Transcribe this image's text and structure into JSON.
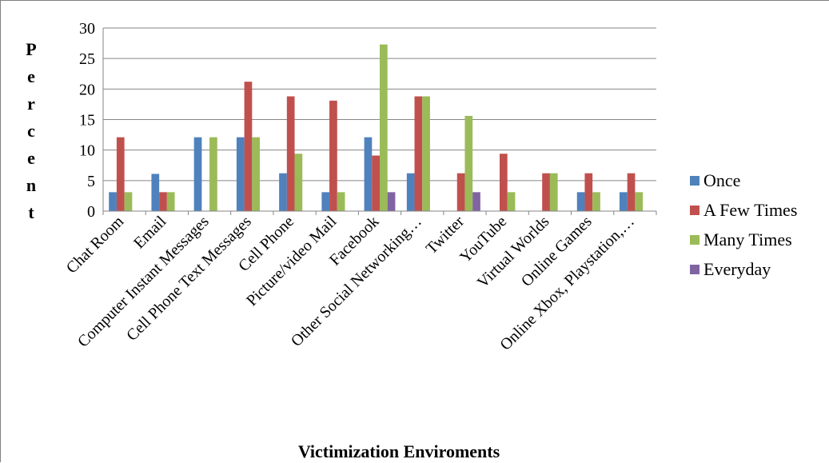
{
  "chart_data": {
    "type": "bar",
    "title": "",
    "xlabel": "Victimization Enviroments",
    "ylabel": "Percent",
    "ylim": [
      0,
      30
    ],
    "yticks": [
      0,
      5,
      10,
      15,
      20,
      25,
      30
    ],
    "grid": true,
    "legend_position": "right",
    "categories": [
      "Chat Room",
      "Email",
      "Computer Instant Messages",
      "Cell Phone Text Messages",
      "Cell Phone",
      "Picture/video Mail",
      "Facebook",
      "Other Social Networking…",
      "Twitter",
      "YouTube",
      "Virtual Worlds",
      "Online Games",
      "Online Xbox, Playstation,…"
    ],
    "series": [
      {
        "name": "Once",
        "color": "#4f81bd",
        "values": [
          3.1,
          6.1,
          12.1,
          12.1,
          6.2,
          3.1,
          12.1,
          6.2,
          0,
          0,
          0,
          3.1,
          3.1
        ]
      },
      {
        "name": "A Few Times",
        "color": "#c0504d",
        "values": [
          12.1,
          3.1,
          0,
          21.2,
          18.8,
          18.1,
          9.1,
          18.8,
          6.2,
          9.4,
          6.2,
          6.2,
          6.2
        ]
      },
      {
        "name": "Many Times",
        "color": "#9bbb59",
        "values": [
          3.1,
          3.1,
          12.1,
          12.1,
          9.4,
          3.1,
          27.3,
          18.8,
          15.6,
          3.1,
          6.2,
          3.1,
          3.1
        ]
      },
      {
        "name": "Everyday",
        "color": "#8064a2",
        "values": [
          0,
          0,
          0,
          0,
          0,
          0,
          3.1,
          0,
          3.1,
          0,
          0,
          0,
          0
        ]
      }
    ]
  }
}
